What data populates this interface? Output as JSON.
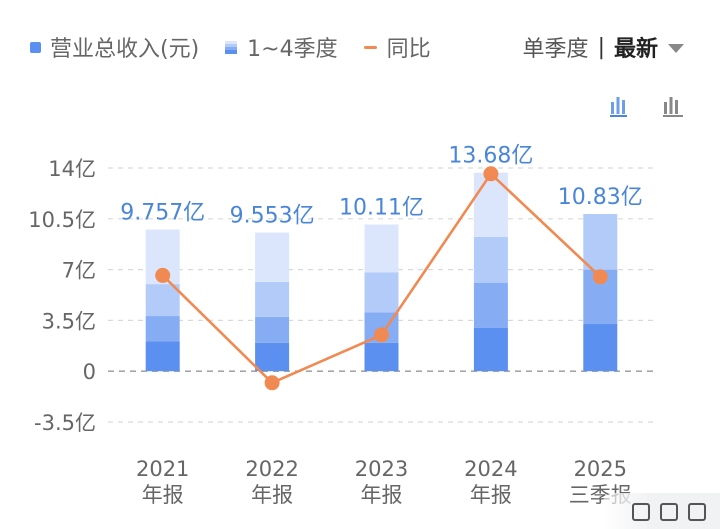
{
  "legend": {
    "revenue": "营业总收入(元)",
    "quarters": "1~4季度",
    "yoy": "同比"
  },
  "mode": {
    "label": "单季度",
    "separator": "|",
    "latest": "最新"
  },
  "icons": {
    "stacked": "stacked-bar-icon",
    "bars": "bar-chart-icon"
  },
  "colors": {
    "q1": "#5b8ff0",
    "q2": "#86adf4",
    "q3": "#b3cbf8",
    "q4": "#dbe6fc",
    "line": "#f08a52",
    "total_label": "#4a86d8",
    "axis_text": "#666666",
    "grid": "#d9d9d9"
  },
  "chart_data": {
    "type": "bar",
    "subtype": "stacked bar with line overlay",
    "categories": [
      [
        "2021",
        "年报"
      ],
      [
        "2022",
        "年报"
      ],
      [
        "2023",
        "年报"
      ],
      [
        "2024",
        "年报"
      ],
      [
        "2025",
        "三季报"
      ]
    ],
    "series": [
      {
        "name": "Q1",
        "values": [
          2.05,
          1.95,
          1.95,
          3.0,
          3.25
        ]
      },
      {
        "name": "Q2",
        "values": [
          1.75,
          1.8,
          2.1,
          3.1,
          3.75
        ]
      },
      {
        "name": "Q3",
        "values": [
          2.2,
          2.4,
          2.75,
          3.15,
          3.83
        ]
      },
      {
        "name": "Q4",
        "values": [
          3.757,
          3.403,
          3.31,
          4.43,
          0
        ]
      }
    ],
    "totals": [
      9.757,
      9.553,
      10.11,
      13.68,
      10.83
    ],
    "total_labels": [
      "9.757亿",
      "9.553亿",
      "10.11亿",
      "13.68亿",
      "10.83亿"
    ],
    "line": {
      "name": "同比",
      "values": [
        6.6,
        -0.8,
        2.5,
        13.6,
        6.5
      ]
    },
    "yticks": [
      14,
      10.5,
      7,
      3.5,
      0,
      -3.5
    ],
    "ytick_labels": [
      "14亿",
      "10.5亿",
      "7亿",
      "3.5亿",
      "0",
      "-3.5亿"
    ],
    "ylim": [
      -3.5,
      14
    ],
    "grid": "dashed horizontal",
    "legend_position": "top-left"
  }
}
